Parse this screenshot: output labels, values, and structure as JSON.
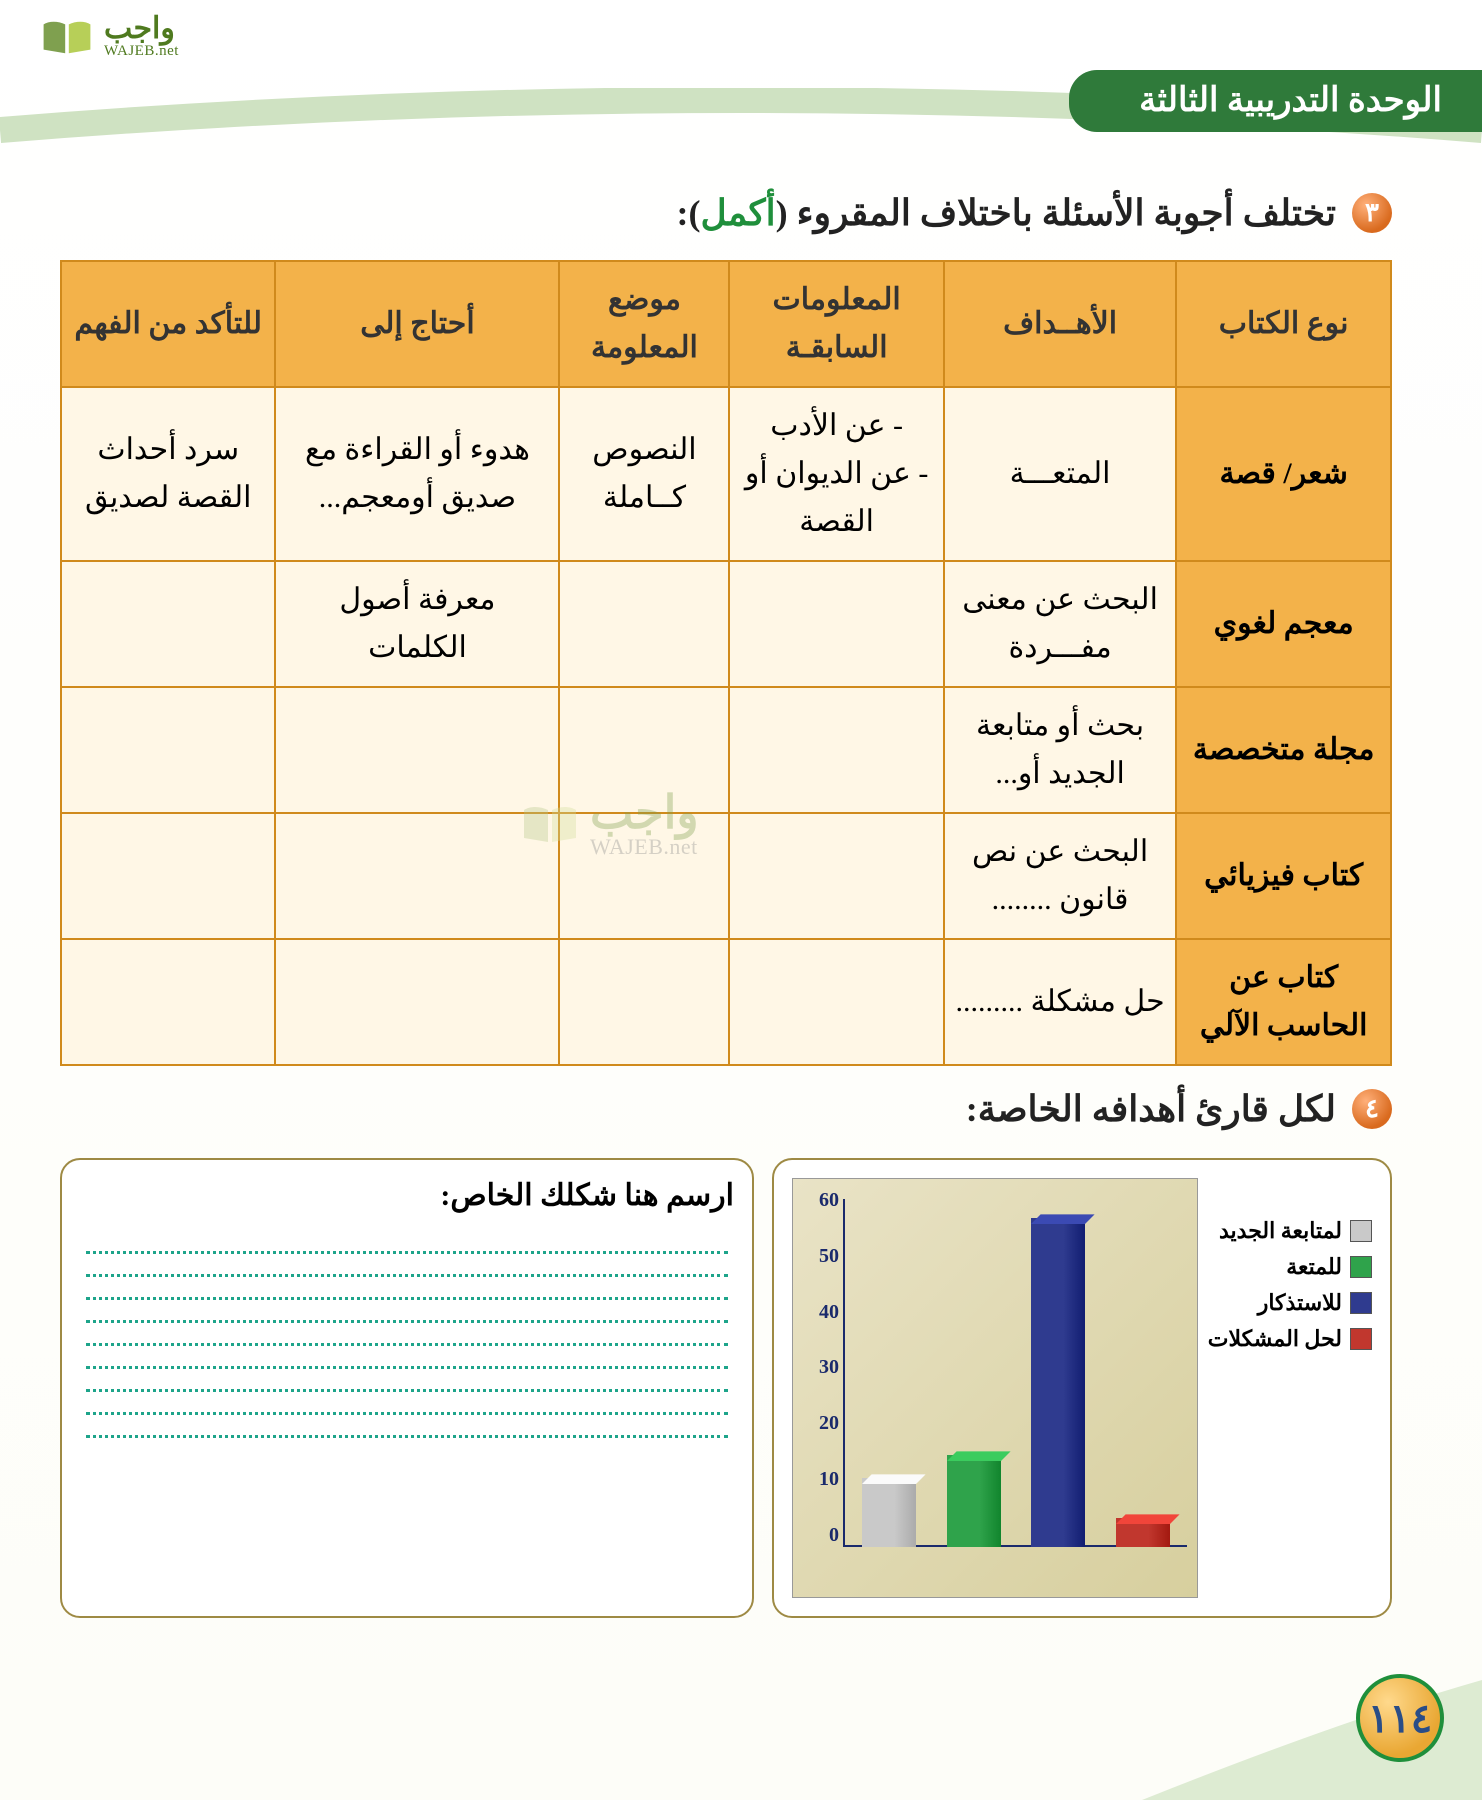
{
  "brand": {
    "ar": "واجب",
    "en": "WAJEB.net"
  },
  "ribbon": "الوحدة التدريبية الثالثة",
  "q3": {
    "bullet": "٣",
    "text_pre": "تختلف أجوبة الأسئلة باختلاف المقروء (",
    "text_highlight": "أكمل",
    "text_post": "):"
  },
  "table": {
    "headers": [
      "نوع الكتاب",
      "الأهــداف",
      "المعلومات السابقـة",
      "موضع المعلومة",
      "أحتاج إلى",
      "للتأكد من الفهم"
    ],
    "rows": [
      {
        "type": "شعر/ قصة",
        "goal": "المتعـــة",
        "prev": "- عن الأدب\n- عن الديوان أو القصة",
        "loc": "النصوص كــاملة",
        "need": "هدوء أو القراءة مع صديق أومعجم...",
        "check": "سرد أحداث القصة لصديق"
      },
      {
        "type": "معجم لغوي",
        "goal": "البحث عن معنى مفـــردة",
        "prev": "",
        "loc": "",
        "need": "معرفة أصول الكلمات",
        "check": ""
      },
      {
        "type": "مجلة متخصصة",
        "goal": "بحث أو متابعة الجديد أو...",
        "prev": "",
        "loc": "",
        "need": "",
        "check": ""
      },
      {
        "type": "كتاب فيزيائي",
        "goal": "البحث عن نص قانون ........",
        "prev": "",
        "loc": "",
        "need": "",
        "check": ""
      },
      {
        "type": "كتاب عن الحاسب الآلي",
        "goal": "حل مشكلة .........",
        "prev": "",
        "loc": "",
        "need": "",
        "check": ""
      }
    ],
    "border_color": "#d08a1c",
    "header_bg": "#f3b24a",
    "cell_bg": "#fff7e6"
  },
  "q4": {
    "bullet": "٤",
    "text": "لكل قارئ أهدافه الخاصة:"
  },
  "chart": {
    "type": "bar",
    "ylim": [
      0,
      60
    ],
    "yticks": [
      0,
      10,
      20,
      30,
      40,
      50,
      60
    ],
    "background": "linear-gradient(135deg,#e9e3c6,#d7cf9e)",
    "axis_color": "#1a2a6c",
    "bars": [
      {
        "label": "لمتابعة الجديد",
        "value": 12,
        "color": "#c9c9c9"
      },
      {
        "label": "للمتعة",
        "value": 16,
        "color": "#2fa34b"
      },
      {
        "label": "للاستذكار",
        "value": 57,
        "color": "#2f3b8f"
      },
      {
        "label": "لحل المشكلات",
        "value": 5,
        "color": "#c1372e"
      }
    ]
  },
  "drawbox": {
    "title": "ارسم هنا شكلك الخاص:",
    "line_color": "#1da48a",
    "line_count": 9
  },
  "page_number": "١١٤",
  "colors": {
    "ribbon_bg": "#2f7a3a",
    "accent_green": "#1f8f3b",
    "bullet_gradient_inner": "#ffb07a",
    "bullet_gradient_outer": "#d96a1e"
  }
}
